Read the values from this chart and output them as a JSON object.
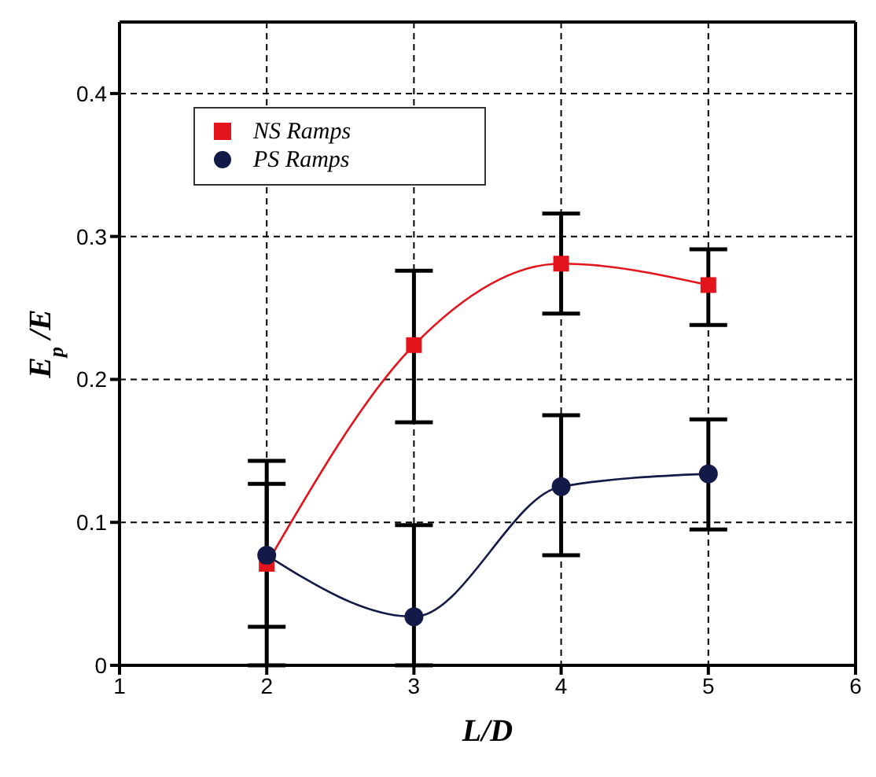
{
  "chart_data": {
    "type": "line",
    "xlabel": "L/D",
    "ylabel": "E$_{p}$ /E",
    "x": [
      2,
      3,
      4,
      5
    ],
    "xlim": [
      1,
      6
    ],
    "xticks": [
      1,
      2,
      3,
      4,
      5,
      6
    ],
    "ylim": [
      0,
      0.45
    ],
    "yticks": [
      0,
      0.1,
      0.2,
      0.3,
      0.4
    ],
    "grid": true,
    "legend": "top left",
    "series": [
      {
        "name": "NS Ramps",
        "color": "#e3141c",
        "marker": "square",
        "values": [
          0.071,
          0.224,
          0.281,
          0.266
        ],
        "errors": [
          [
            0.027,
            0.127
          ],
          [
            0.17,
            0.276
          ],
          [
            0.246,
            0.316
          ],
          [
            0.238,
            0.291
          ]
        ]
      },
      {
        "name": "PS Ramps",
        "color": "#141a48",
        "marker": "circle",
        "values": [
          0.077,
          0.034,
          0.125,
          0.134
        ],
        "errors": [
          [
            0,
            0.143
          ],
          [
            0,
            0.098
          ],
          [
            0.077,
            0.175
          ],
          [
            0.095,
            0.172
          ]
        ]
      }
    ]
  }
}
